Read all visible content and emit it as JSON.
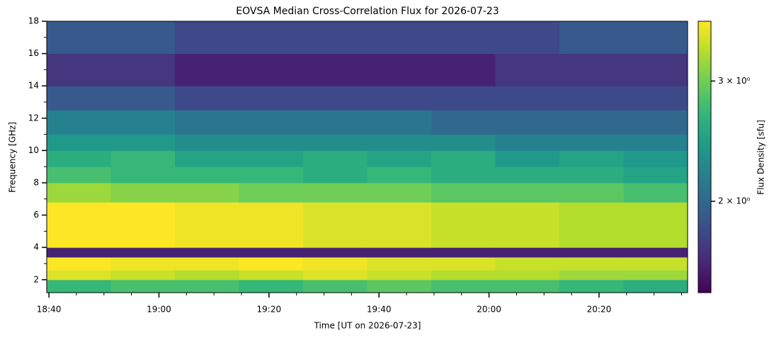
{
  "chart_data": {
    "type": "heatmap",
    "title": "EOVSA Median Cross-Correlation Flux for 2026-07-23",
    "x_label": "Time [UT on 2026-07-23]",
    "y_label": "Frequency [GHz]",
    "xlim": [
      1119.6,
      1236.1
    ],
    "xticks": [
      {
        "value": 1120,
        "label": "18:40"
      },
      {
        "value": 1140,
        "label": "19:00"
      },
      {
        "value": 1160,
        "label": "19:20"
      },
      {
        "value": 1180,
        "label": "19:40"
      },
      {
        "value": 1200,
        "label": "20:00"
      },
      {
        "value": 1220,
        "label": "20:20"
      }
    ],
    "xminorticks": [
      1125,
      1130,
      1135,
      1145,
      1150,
      1155,
      1165,
      1170,
      1175,
      1185,
      1190,
      1195,
      1205,
      1210,
      1215,
      1225,
      1230,
      1235
    ],
    "ylim": [
      1.2,
      18
    ],
    "yticks": [
      2,
      4,
      6,
      8,
      10,
      12,
      14,
      16,
      18
    ],
    "yminorticks": [
      3,
      5,
      7,
      9,
      11,
      13,
      15,
      17
    ],
    "x_bins": [
      1119.6,
      1131.25,
      1142.9,
      1154.55,
      1166.2,
      1177.85,
      1189.5,
      1201.15,
      1212.8,
      1224.45,
      1236.1
    ],
    "y_bins": [
      1.2,
      2,
      2.6,
      3.4,
      4,
      6.8,
      8,
      9,
      10,
      11,
      12.5,
      14,
      16,
      18
    ],
    "values": [
      [
        2.7,
        2.8,
        2.8,
        2.7,
        2.8,
        2.9,
        2.8,
        2.8,
        2.7,
        2.6
      ],
      [
        3.5,
        3.4,
        3.3,
        3.4,
        3.5,
        3.4,
        3.3,
        3.3,
        3.2,
        3.2
      ],
      [
        3.7,
        3.6,
        3.6,
        3.7,
        3.6,
        3.5,
        3.5,
        3.4,
        3.4,
        3.4
      ],
      [
        1.6,
        1.6,
        1.6,
        1.6,
        1.6,
        1.6,
        1.6,
        1.6,
        1.6,
        1.6
      ],
      [
        3.7,
        3.7,
        3.6,
        3.6,
        3.5,
        3.5,
        3.4,
        3.4,
        3.3,
        3.3
      ],
      [
        3.2,
        3.1,
        3.1,
        3.0,
        3.0,
        3.0,
        2.9,
        2.9,
        2.9,
        2.8
      ],
      [
        2.8,
        2.7,
        2.7,
        2.7,
        2.6,
        2.7,
        2.6,
        2.6,
        2.6,
        2.5
      ],
      [
        2.6,
        2.7,
        2.5,
        2.5,
        2.6,
        2.5,
        2.6,
        2.4,
        2.5,
        2.4
      ],
      [
        2.4,
        2.4,
        2.3,
        2.3,
        2.3,
        2.3,
        2.3,
        2.2,
        2.2,
        2.2
      ],
      [
        2.2,
        2.2,
        2.1,
        2.1,
        2.1,
        2.1,
        2.0,
        2.0,
        2.0,
        2.0
      ],
      [
        1.9,
        1.9,
        1.8,
        1.8,
        1.8,
        1.8,
        1.8,
        1.8,
        1.8,
        1.8
      ],
      [
        1.7,
        1.7,
        1.6,
        1.6,
        1.6,
        1.6,
        1.6,
        1.7,
        1.7,
        1.7
      ],
      [
        1.9,
        1.9,
        1.8,
        1.8,
        1.8,
        1.8,
        1.8,
        1.8,
        1.9,
        1.9
      ]
    ],
    "colorbar": {
      "label": "Flux Density [sfu]",
      "log": true,
      "colormap": "viridis",
      "clim": [
        1.47,
        3.67
      ],
      "ticks": [
        {
          "value": 2,
          "label": "2 × 10⁰"
        },
        {
          "value": 3,
          "label": "3 × 10⁰"
        }
      ]
    }
  }
}
